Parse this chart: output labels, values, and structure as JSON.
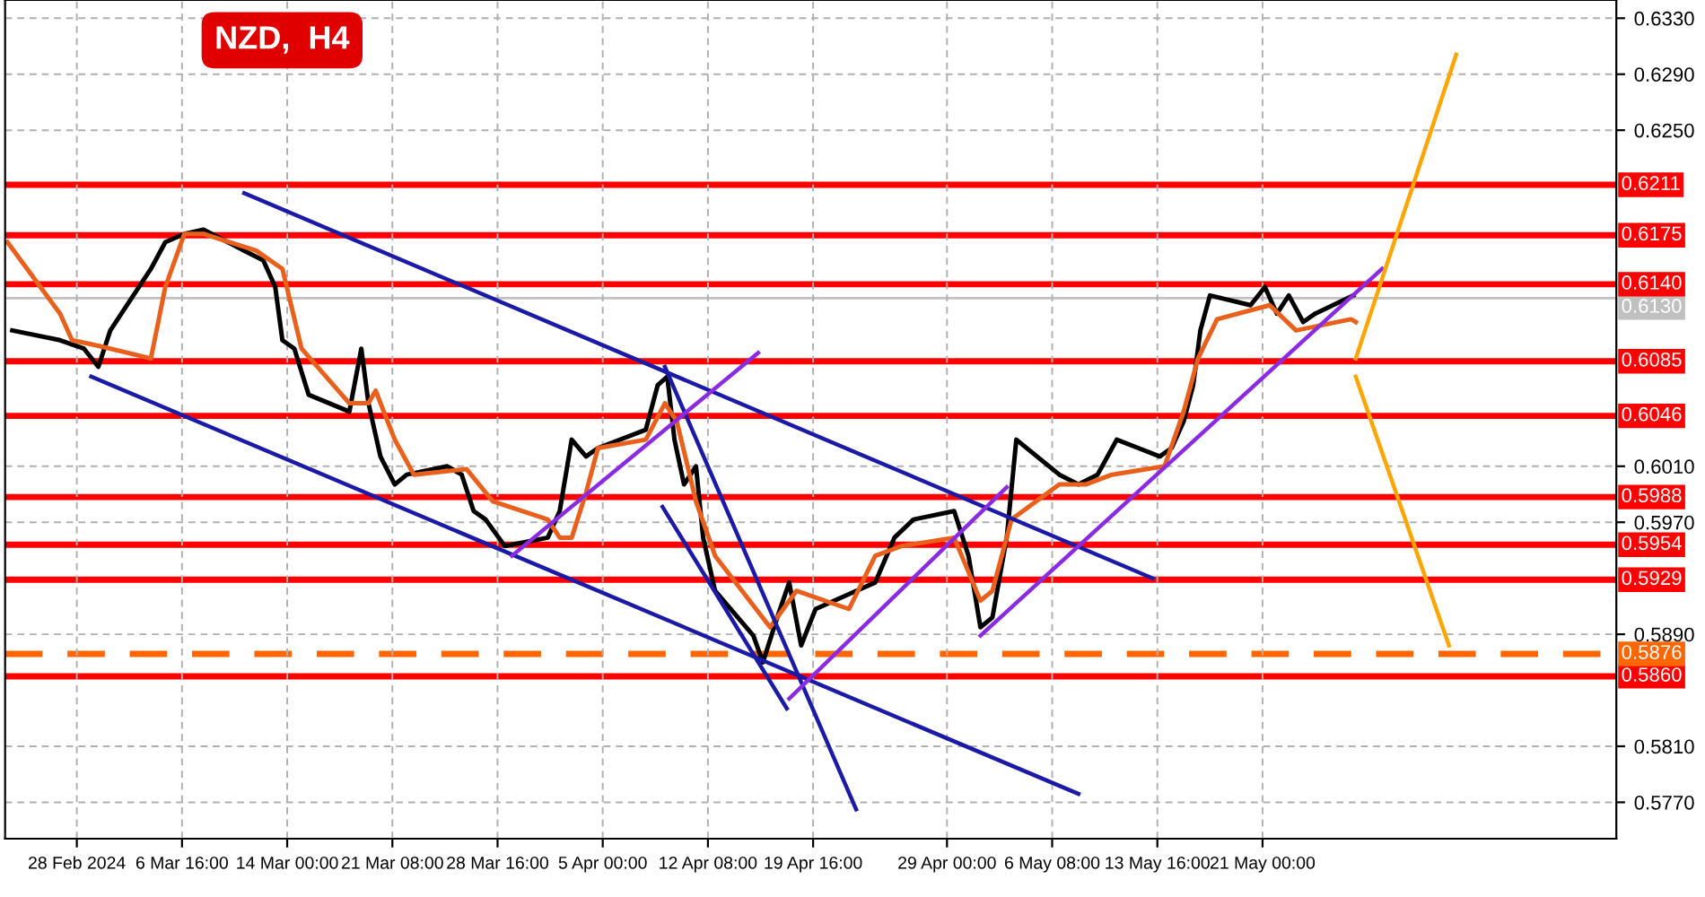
{
  "chart_data": {
    "type": "line",
    "title": "NZD,  H4",
    "xlim": [
      "2024-02-23T08:00",
      "2024-06-14T16:00"
    ],
    "ylim": [
      0.5744,
      0.6343
    ],
    "xticks": [
      {
        "value": "2024-02-28T08:00",
        "label": "28 Feb 2024"
      },
      {
        "value": "2024-03-06T16:00",
        "label": "6 Mar 16:00"
      },
      {
        "value": "2024-03-14T00:00",
        "label": "14 Mar 00:00"
      },
      {
        "value": "2024-03-21T08:00",
        "label": "21 Mar 08:00"
      },
      {
        "value": "2024-03-28T16:00",
        "label": "28 Mar 16:00"
      },
      {
        "value": "2024-04-05T00:00",
        "label": "5 Apr 00:00"
      },
      {
        "value": "2024-04-12T08:00",
        "label": "12 Apr 08:00"
      },
      {
        "value": "2024-04-19T16:00",
        "label": "19 Apr 16:00"
      },
      {
        "value": "2024-04-29T00:00",
        "label": "29 Apr 00:00"
      },
      {
        "value": "2024-05-06T08:00",
        "label": "6 May 08:00"
      },
      {
        "value": "2024-05-13T16:00",
        "label": "13 May 16:00"
      },
      {
        "value": "2024-05-21T00:00",
        "label": "21 May 00:00"
      }
    ],
    "yticks": [
      {
        "value": 0.633,
        "label": "0.6330"
      },
      {
        "value": 0.629,
        "label": "0.6290"
      },
      {
        "value": 0.625,
        "label": "0.6250"
      },
      {
        "value": 0.601,
        "label": "0.6010"
      },
      {
        "value": 0.597,
        "label": "0.5970"
      },
      {
        "value": 0.589,
        "label": "0.5890"
      },
      {
        "value": 0.581,
        "label": "0.5810"
      },
      {
        "value": 0.577,
        "label": "0.5770"
      }
    ],
    "grid": true,
    "legend": false,
    "series": [
      {
        "color": "#000000",
        "x": [
          "2024-02-23T20:00",
          "2024-02-27T04:00",
          "2024-02-28T20:00",
          "2024-02-29T20:00",
          "2024-03-01T16:00",
          "2024-03-04T12:00",
          "2024-03-05T12:00",
          "2024-03-06T20:00",
          "2024-03-08T04:00",
          "2024-03-11T00:00",
          "2024-03-12T08:00",
          "2024-03-13T04:00",
          "2024-03-13T16:00",
          "2024-03-14T12:00",
          "2024-03-15T12:00",
          "2024-03-18T08:00",
          "2024-03-19T04:00",
          "2024-03-19T16:00",
          "2024-03-20T12:00",
          "2024-03-21T12:00",
          "2024-03-22T08:00",
          "2024-03-25T04:00",
          "2024-03-26T04:00",
          "2024-03-27T00:00",
          "2024-03-27T20:00",
          "2024-03-29T04:00",
          "2024-04-01T04:00",
          "2024-04-02T00:00",
          "2024-04-02T20:00",
          "2024-04-03T20:00",
          "2024-04-04T16:00",
          "2024-04-08T00:00",
          "2024-04-08T20:00",
          "2024-04-09T12:00",
          "2024-04-10T00:00",
          "2024-04-10T16:00",
          "2024-04-11T12:00",
          "2024-04-12T00:00",
          "2024-04-12T20:00",
          "2024-04-15T12:00",
          "2024-04-16T04:00",
          "2024-04-17T04:00",
          "2024-04-18T00:00",
          "2024-04-18T20:00",
          "2024-04-19T20:00",
          "2024-04-22T16:00",
          "2024-04-24T00:00",
          "2024-04-25T08:00",
          "2024-04-26T16:00",
          "2024-04-29T12:00",
          "2024-04-30T12:00",
          "2024-05-01T08:00",
          "2024-05-02T04:00",
          "2024-05-03T04:00",
          "2024-05-03T20:00",
          "2024-05-06T20:00",
          "2024-05-08T04:00",
          "2024-05-09T12:00",
          "2024-05-10T20:00",
          "2024-05-13T20:00",
          "2024-05-14T16:00",
          "2024-05-15T12:00",
          "2024-05-16T04:00",
          "2024-05-16T16:00",
          "2024-05-17T08:00",
          "2024-05-20T04:00",
          "2024-05-21T04:00",
          "2024-05-22T00:00",
          "2024-05-22T20:00",
          "2024-05-23T20:00",
          "2024-05-24T16:00",
          "2024-05-27T08:00"
        ],
        "values": [
          0.6107,
          0.61,
          0.6094,
          0.6081,
          0.6107,
          0.6151,
          0.617,
          0.6176,
          0.6179,
          0.6164,
          0.6157,
          0.6138,
          0.61,
          0.6094,
          0.6061,
          0.6049,
          0.6094,
          0.6055,
          0.6017,
          0.5997,
          0.6004,
          0.601,
          0.6004,
          0.5978,
          0.5972,
          0.5953,
          0.5959,
          0.5978,
          0.6029,
          0.6017,
          0.6023,
          0.6036,
          0.6068,
          0.6074,
          0.6029,
          0.5997,
          0.601,
          0.5959,
          0.5921,
          0.5889,
          0.587,
          0.5902,
          0.5927,
          0.5882,
          0.5908,
          0.5921,
          0.5927,
          0.5959,
          0.5972,
          0.5978,
          0.5946,
          0.5895,
          0.5902,
          0.5959,
          0.6029,
          0.6004,
          0.5997,
          0.6004,
          0.6029,
          0.6017,
          0.6023,
          0.6042,
          0.6068,
          0.6107,
          0.6132,
          0.6125,
          0.6138,
          0.6119,
          0.6132,
          0.6113,
          0.6119,
          0.6132
        ]
      },
      {
        "color": "#e8601c",
        "x": [
          "2024-02-23T12:00",
          "2024-02-27T04:00",
          "2024-02-28T00:00",
          "2024-02-29T20:00",
          "2024-03-04T12:00",
          "2024-03-05T12:00",
          "2024-03-06T20:00",
          "2024-03-08T04:00",
          "2024-03-11T20:00",
          "2024-03-13T16:00",
          "2024-03-15T00:00",
          "2024-03-18T08:00",
          "2024-03-19T16:00",
          "2024-03-20T04:00",
          "2024-03-21T12:00",
          "2024-03-22T20:00",
          "2024-03-26T12:00",
          "2024-03-28T08:00",
          "2024-04-01T04:00",
          "2024-04-02T00:00",
          "2024-04-02T20:00",
          "2024-04-03T20:00",
          "2024-04-04T16:00",
          "2024-04-08T00:00",
          "2024-04-09T08:00",
          "2024-04-10T04:00",
          "2024-04-11T12:00",
          "2024-04-12T20:00",
          "2024-04-16T16:00",
          "2024-04-18T12:00",
          "2024-04-22T04:00",
          "2024-04-24T00:00",
          "2024-04-25T20:00",
          "2024-04-29T12:00",
          "2024-05-01T08:00",
          "2024-05-02T04:00",
          "2024-05-03T12:00",
          "2024-05-06T20:00",
          "2024-05-08T16:00",
          "2024-05-10T12:00",
          "2024-05-14T04:00",
          "2024-05-15T12:00",
          "2024-05-16T12:00",
          "2024-05-17T20:00",
          "2024-05-21T12:00",
          "2024-05-23T08:00",
          "2024-05-27T04:00",
          "2024-05-27T12:00"
        ],
        "values": [
          0.617,
          0.6119,
          0.61,
          0.6096,
          0.6087,
          0.6138,
          0.6176,
          0.6176,
          0.6164,
          0.6151,
          0.6094,
          0.6055,
          0.6055,
          0.6064,
          0.6029,
          0.6004,
          0.6008,
          0.5985,
          0.5972,
          0.5959,
          0.5959,
          0.5991,
          0.6023,
          0.6029,
          0.6055,
          0.6042,
          0.5985,
          0.5946,
          0.5895,
          0.5921,
          0.5908,
          0.5946,
          0.5953,
          0.5959,
          0.5914,
          0.5921,
          0.5972,
          0.5997,
          0.5997,
          0.6004,
          0.601,
          0.6049,
          0.6087,
          0.6115,
          0.6125,
          0.6107,
          0.6115,
          0.6113
        ]
      },
      {
        "color": "#1a1aa6",
        "x": [
          "2024-03-11T00:00",
          "2024-05-13T08:00"
        ],
        "values": [
          0.6205,
          0.593
        ]
      },
      {
        "color": "#1a1aa6",
        "x": [
          "2024-02-29T08:00",
          "2024-05-08T04:00"
        ],
        "values": [
          0.6074,
          0.5776
        ]
      },
      {
        "color": "#1a1aa6",
        "x": [
          "2024-04-09T08:00",
          "2024-04-22T16:00"
        ],
        "values": [
          0.6081,
          0.5765
        ]
      },
      {
        "color": "#1a1aa6",
        "x": [
          "2024-04-09T04:00",
          "2024-04-17T20:00"
        ],
        "values": [
          0.5981,
          0.5837
        ]
      },
      {
        "color": "#8a2be2",
        "x": [
          "2024-03-29T16:00",
          "2024-04-15T20:00"
        ],
        "values": [
          0.5946,
          0.6091
        ]
      },
      {
        "color": "#8a2be2",
        "x": [
          "2024-04-18T00:00",
          "2024-05-03T04:00"
        ],
        "values": [
          0.5844,
          0.5995
        ]
      },
      {
        "color": "#8a2be2",
        "x": [
          "2024-05-01T08:00",
          "2024-05-29T08:00"
        ],
        "values": [
          0.5889,
          0.6151
        ]
      },
      {
        "color": "#ffa500",
        "x": [
          "2024-05-27T12:00",
          "2024-06-03T12:00"
        ],
        "values": [
          0.6087,
          0.6304
        ]
      },
      {
        "color": "#ffa500",
        "x": [
          "2024-05-27T12:00",
          "2024-06-03T00:00"
        ],
        "values": [
          0.6074,
          0.5882
        ]
      }
    ],
    "ref_lines": [
      {
        "axis": "y",
        "value": 0.6211,
        "label": "0.6211",
        "color": "#ff0000"
      },
      {
        "axis": "y",
        "value": 0.6175,
        "label": "0.6175",
        "color": "#ff0000"
      },
      {
        "axis": "y",
        "value": 0.614,
        "label": "0.6140",
        "color": "#ff0000"
      },
      {
        "axis": "y",
        "value": 0.613,
        "label": "0.6130",
        "color": "#c0c0c0"
      },
      {
        "axis": "y",
        "value": 0.6085,
        "label": "0.6085",
        "color": "#ff0000"
      },
      {
        "axis": "y",
        "value": 0.6046,
        "label": "0.6046",
        "color": "#ff0000"
      },
      {
        "axis": "y",
        "value": 0.5988,
        "label": "0.5988",
        "color": "#ff0000"
      },
      {
        "axis": "y",
        "value": 0.5954,
        "label": "0.5954",
        "color": "#ff0000"
      },
      {
        "axis": "y",
        "value": 0.5929,
        "label": "0.5929",
        "color": "#ff0000"
      },
      {
        "axis": "y",
        "value": 0.5876,
        "label": "0.5876",
        "color": "#ff6600",
        "line_style": "dashed"
      },
      {
        "axis": "y",
        "value": 0.586,
        "label": "0.5860",
        "color": "#ff0000"
      }
    ]
  }
}
